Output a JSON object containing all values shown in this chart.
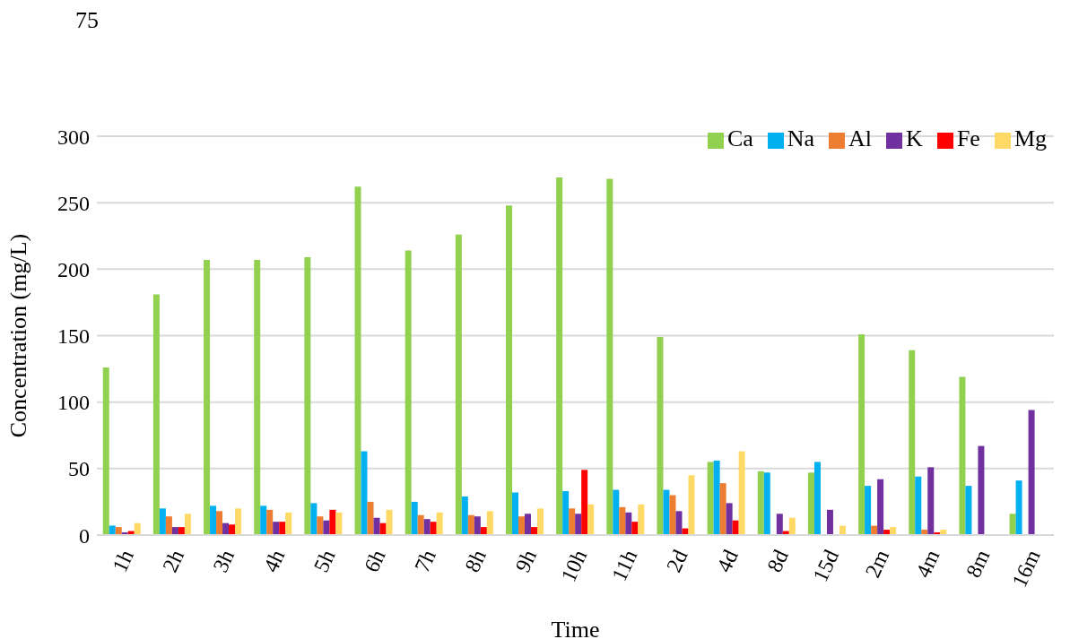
{
  "chart_data": {
    "type": "bar",
    "annotations": [
      "75"
    ],
    "xlabel": "Time",
    "ylabel": "Concentration (mg/L)",
    "categories": [
      "1h",
      "2h",
      "3h",
      "4h",
      "5h",
      "6h",
      "7h",
      "8h",
      "9h",
      "10h",
      "11h",
      "2d",
      "4d",
      "8d",
      "15d",
      "2m",
      "4m",
      "8m",
      "16m"
    ],
    "series": [
      {
        "name": "Ca",
        "color": "#92d050",
        "values": [
          126,
          181,
          207,
          207,
          209,
          262,
          214,
          226,
          248,
          269,
          268,
          149,
          55,
          48,
          47,
          151,
          139,
          119,
          16
        ]
      },
      {
        "name": "Na",
        "color": "#00b0f0",
        "values": [
          7,
          20,
          22,
          22,
          24,
          63,
          25,
          29,
          32,
          33,
          34,
          34,
          56,
          47,
          55,
          37,
          44,
          37,
          41
        ]
      },
      {
        "name": "Al",
        "color": "#ed7d31",
        "values": [
          6,
          14,
          18,
          19,
          14,
          25,
          15,
          15,
          14,
          20,
          21,
          30,
          39,
          null,
          null,
          7,
          4,
          null,
          null
        ]
      },
      {
        "name": "K",
        "color": "#7030a0",
        "values": [
          2,
          6,
          9,
          10,
          11,
          13,
          12,
          14,
          16,
          16,
          17,
          18,
          24,
          16,
          19,
          42,
          51,
          67,
          94
        ]
      },
      {
        "name": "Fe",
        "color": "#ff0000",
        "values": [
          3,
          6,
          8,
          10,
          19,
          9,
          10,
          6,
          6,
          49,
          10,
          5,
          11,
          3,
          null,
          4,
          2,
          null,
          null
        ]
      },
      {
        "name": "Mg",
        "color": "#ffd966",
        "values": [
          9,
          16,
          20,
          17,
          17,
          19,
          17,
          18,
          20,
          23,
          23,
          45,
          63,
          13,
          7,
          6,
          4,
          null,
          null
        ]
      }
    ],
    "ylim": [
      0,
      300
    ],
    "yticks": [
      0,
      50,
      100,
      150,
      200,
      250,
      300
    ],
    "grid": "y",
    "legend": "top right"
  }
}
